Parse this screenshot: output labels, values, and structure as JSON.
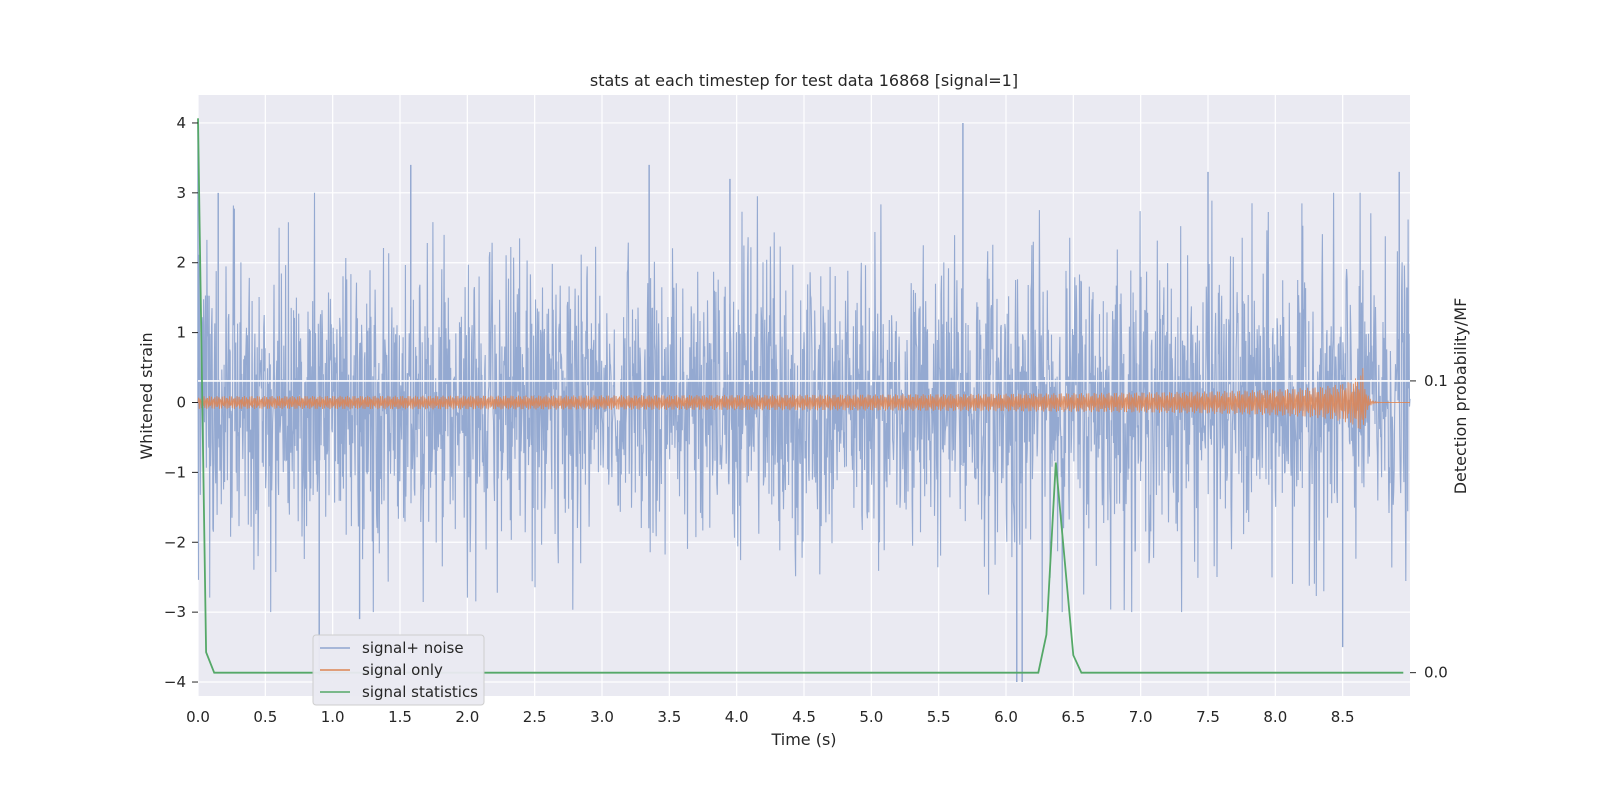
{
  "chart_data": {
    "type": "line",
    "title": "stats at each timestep for test data 16868 [signal=1]",
    "xlabel": "Time (s)",
    "ylabel": "Whitened strain",
    "y2label": "Detection probability/MF",
    "xlim": [
      0,
      9.0
    ],
    "ylim": [
      -4.2,
      4.4
    ],
    "y2lim": [
      -0.008,
      0.198
    ],
    "x_ticks": [
      "0.0",
      "0.5",
      "1.0",
      "1.5",
      "2.0",
      "2.5",
      "3.0",
      "3.5",
      "4.0",
      "4.5",
      "5.0",
      "5.5",
      "6.0",
      "6.5",
      "7.0",
      "7.5",
      "8.0",
      "8.5"
    ],
    "y_ticks": [
      "4",
      "3",
      "2",
      "1",
      "0",
      "−1",
      "−2",
      "−3",
      "−4"
    ],
    "y2_ticks": [
      "0.1",
      "0.0"
    ],
    "grid": true,
    "legend_position": "lower-left",
    "series": [
      {
        "name": "signal+ noise",
        "color": "#8fa5cf",
        "axis": "left",
        "description_range": [
          -4.0,
          4.0
        ],
        "envelope_peaks": {
          "x": [
            0.0,
            0.15,
            0.9,
            1.2,
            1.58,
            3.35,
            3.95,
            5.68,
            6.08,
            6.12,
            7.5,
            8.5,
            8.92
          ],
          "y": [
            4.0,
            3.0,
            -3.9,
            -3.1,
            3.4,
            3.4,
            3.2,
            4.0,
            -4.0,
            -4.0,
            3.3,
            -3.5,
            3.3
          ]
        }
      },
      {
        "name": "signal only",
        "color": "#dd8452",
        "axis": "left",
        "chirp_peak_time": 8.65,
        "chirp_peak_amplitude": 0.5
      },
      {
        "name": "signal statistics",
        "color": "#55a868",
        "axis": "right",
        "x": [
          0.0,
          0.06,
          0.12,
          6.24,
          6.3,
          6.37,
          6.5,
          6.56,
          8.95
        ],
        "y": [
          0.19,
          0.007,
          0.0,
          0.0,
          0.013,
          0.072,
          0.006,
          0.0,
          0.0
        ]
      }
    ],
    "reference_line": {
      "axis": "right",
      "y": 0.1,
      "color": "#ffffff"
    }
  }
}
